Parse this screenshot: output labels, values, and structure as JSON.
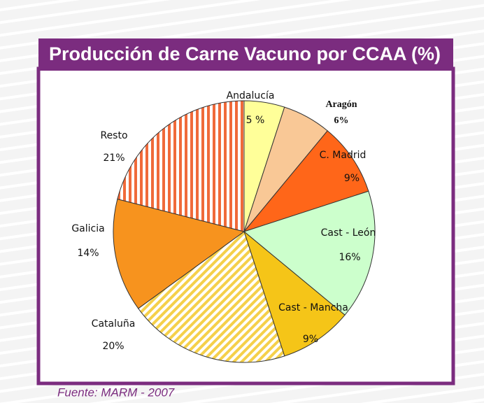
{
  "chart_data": {
    "type": "pie",
    "title": "Producción de Carne Vacuno por CCAA (%)",
    "source": "Fuente: MARM - 2007",
    "categories": [
      "Andalucía",
      "Aragón",
      "C. Madrid",
      "Cast - León",
      "Cast - Mancha",
      "Cataluña",
      "Galicia",
      "Resto"
    ],
    "values": [
      5,
      6,
      9,
      16,
      9,
      20,
      14,
      21
    ],
    "value_labels": [
      "5 %",
      "6%",
      "9%",
      "16%",
      "9%",
      "20%",
      "14%",
      "21%"
    ],
    "colors": [
      "#ffff99",
      "#f9c896",
      "#ff6619",
      "#ccffcc",
      "#f5c518",
      "#f5d04a",
      "#f7931e",
      "#f06a3a"
    ],
    "hatch": [
      null,
      null,
      null,
      null,
      null,
      "diagonal",
      null,
      "vertical"
    ]
  }
}
